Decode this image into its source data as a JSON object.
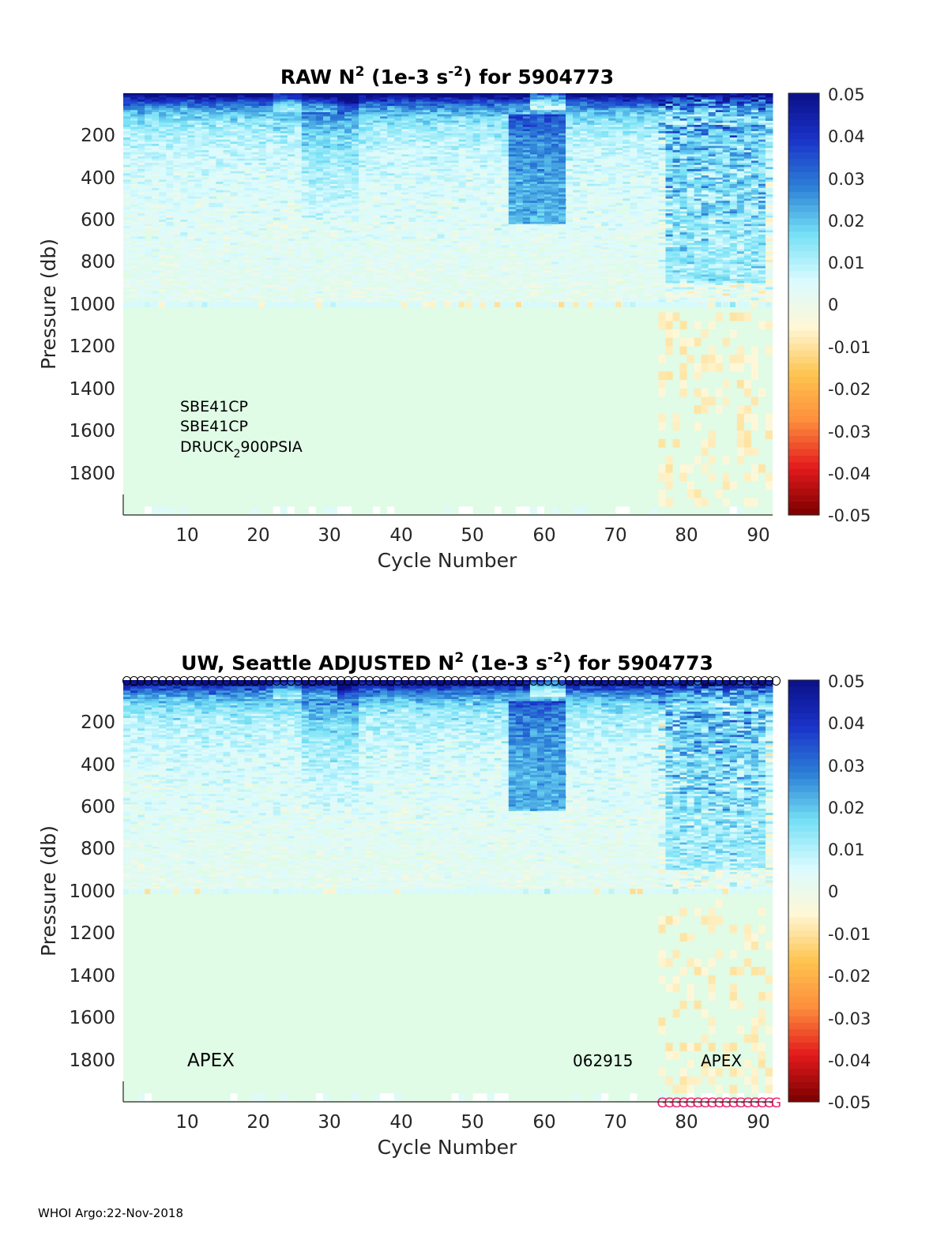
{
  "footer": "WHOI Argo:22-Nov-2018",
  "colors": {
    "background_fill": "#e0fbe6",
    "circle_stroke": "#000000",
    "g_marker": "#e8206a"
  },
  "colorbar": {
    "ticks": [
      "0.05",
      "0.04",
      "0.03",
      "0.02",
      "0.01",
      "0",
      "-0.01",
      "-0.02",
      "-0.03",
      "-0.04",
      "-0.05"
    ],
    "range": [
      -0.05,
      0.05
    ],
    "colormap": [
      "#7b0000",
      "#e31a1c",
      "#fd8d3c",
      "#fec44f",
      "#fff7d6",
      "#d9fbff",
      "#74e0f5",
      "#2c7fd6",
      "#1a33c9",
      "#0b0f86"
    ]
  },
  "chart_data": [
    {
      "type": "heatmap",
      "title_parts": {
        "prefix": "RAW N",
        "sup1": "2",
        "mid": " (1e-3 s",
        "sup2": "-2",
        "suffix": ") for 5904773"
      },
      "xlabel": "Cycle Number",
      "ylabel": "Pressure (db)",
      "xlim": [
        1,
        92
      ],
      "ylim": [
        0,
        2000
      ],
      "x_ticks": [
        "10",
        "20",
        "30",
        "40",
        "50",
        "60",
        "70",
        "80",
        "90"
      ],
      "y_ticks": [
        "200",
        "400",
        "600",
        "800",
        "1000",
        "1200",
        "1400",
        "1600",
        "1800"
      ],
      "clim": [
        -0.05,
        0.05
      ],
      "annotation_lines": [
        "SBE41CP",
        "SBE41CP"
      ],
      "druck": {
        "main": "DRUCK",
        "sub": "2",
        "rest": "900PSIA"
      }
    },
    {
      "type": "heatmap",
      "title_parts": {
        "prefix": "UW, Seattle  ADJUSTED N",
        "sup1": "2",
        "mid": " (1e-3 s",
        "sup2": "-2",
        "suffix": ") for 5904773"
      },
      "xlabel": "Cycle Number",
      "ylabel": "Pressure (db)",
      "xlim": [
        1,
        92
      ],
      "ylim": [
        0,
        2000
      ],
      "x_ticks": [
        "10",
        "20",
        "30",
        "40",
        "50",
        "60",
        "70",
        "80",
        "90"
      ],
      "y_ticks": [
        "200",
        "400",
        "600",
        "800",
        "1000",
        "1200",
        "1400",
        "1600",
        "1800"
      ],
      "clim": [
        -0.05,
        0.05
      ],
      "labels": {
        "left": "APEX",
        "mid": "062915",
        "right": "APEX"
      },
      "top_markers": {
        "symbol": "O",
        "cycles_from": 1,
        "cycles_to": 92
      },
      "bottom_markers": {
        "symbol": "G",
        "cycles_from": 76,
        "cycles_to": 92
      }
    }
  ]
}
